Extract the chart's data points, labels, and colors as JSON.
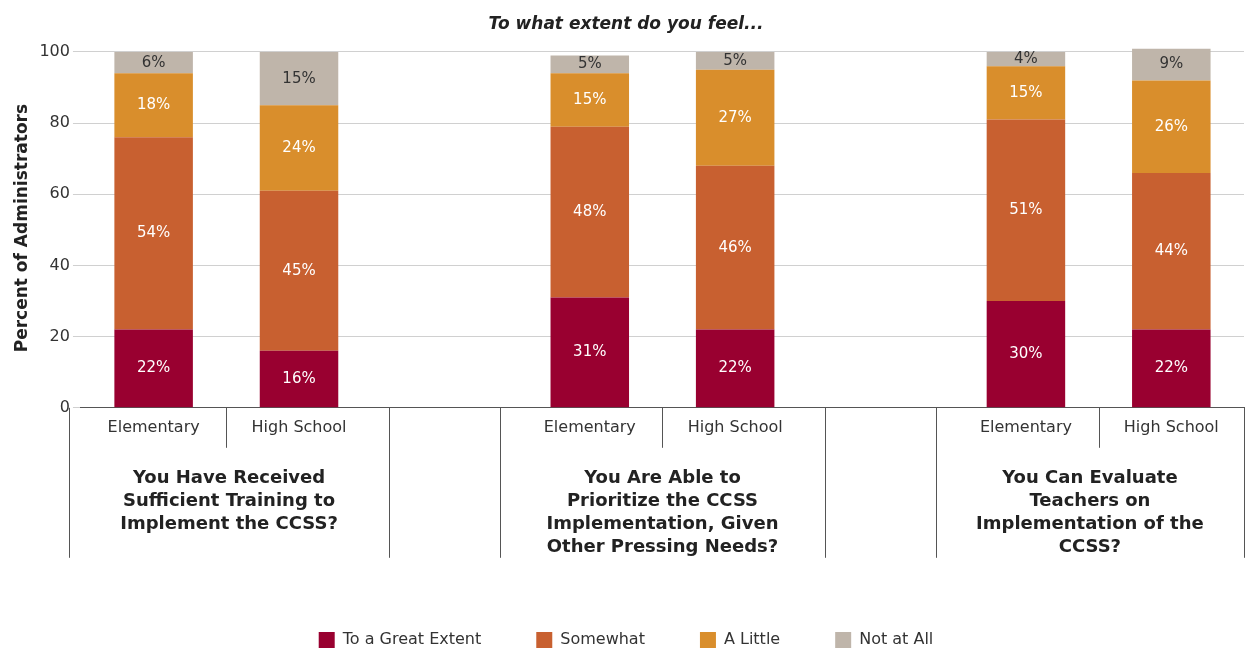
{
  "chart_data": {
    "type": "bar",
    "stacked": true,
    "title": "To what extent do you feel...",
    "ylabel": "Percent of Administrators",
    "categories": [
      "Elementary",
      "High School",
      null,
      "Elementary",
      "High School",
      null,
      "Elementary",
      "High School"
    ],
    "annotations": [
      "You Have Received Sufficient Training to Implement the CCSS?",
      "You Are Able to Prioritize the CCSS Implementation, Given Other Pressing Needs?",
      "You Can Evaluate Teachers on Implementation of the CCSS?"
    ],
    "series": [
      {
        "name": "To a Great Extent",
        "color": "#990030",
        "values": [
          22,
          16,
          null,
          31,
          22,
          null,
          30,
          22
        ],
        "value_labels": [
          "22%",
          "16%",
          null,
          "31%",
          "22%",
          null,
          "30%",
          "22%"
        ]
      },
      {
        "name": "Somewhat",
        "color": "#c86030",
        "values": [
          54,
          45,
          null,
          48,
          46,
          null,
          51,
          44
        ],
        "value_labels": [
          "54%",
          "45%",
          null,
          "48%",
          "46%",
          null,
          "51%",
          "44%"
        ]
      },
      {
        "name": "A Little",
        "color": "#d98e2c",
        "values": [
          18,
          24,
          null,
          15,
          27,
          null,
          15,
          26
        ],
        "value_labels": [
          "18%",
          "24%",
          null,
          "15%",
          "27%",
          null,
          "15%",
          "26%"
        ]
      },
      {
        "name": "Not at All",
        "color": "#bfb5aa",
        "values": [
          6,
          15,
          null,
          5,
          5,
          null,
          4,
          9
        ],
        "value_labels": [
          "6%",
          "15%",
          null,
          "5%",
          "5%",
          null,
          "4%",
          "9%"
        ]
      }
    ],
    "ylim": [
      0,
      101
    ],
    "yticks": [
      0,
      20,
      40,
      60,
      80,
      100
    ],
    "grid": "y",
    "legend": "bottom"
  }
}
